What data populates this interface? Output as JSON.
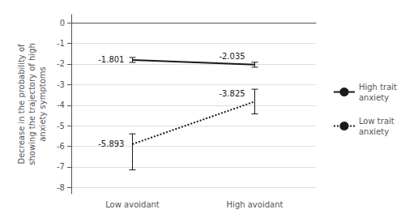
{
  "chart_data": {
    "type": "line",
    "categories": [
      "Low avoidant",
      "High avoidant"
    ],
    "ylabel": "Decrease in the probability of\nshowing the trajectory of high\nanxiety symptoms",
    "ylim": [
      -8.3,
      0.4
    ],
    "yticks": [
      0,
      -1,
      -2,
      -3,
      -4,
      -5,
      -6,
      -7,
      -8
    ],
    "grid": true,
    "legend": "right",
    "data_labels": true,
    "series": [
      {
        "name": "High trait\nanxiety",
        "color": "#1a1a1a",
        "line_style": "solid",
        "values": [
          -1.801,
          -2.035
        ],
        "yerr_low": [
          0.12,
          0.12
        ],
        "yerr_high": [
          0.12,
          0.12
        ]
      },
      {
        "name": "Low trait\nanxiety",
        "color": "#1a1a1a",
        "line_style": "dotted",
        "values": [
          -5.893,
          -3.825
        ],
        "yerr_low": [
          1.25,
          0.6
        ],
        "yerr_high": [
          0.5,
          0.6
        ]
      }
    ]
  }
}
